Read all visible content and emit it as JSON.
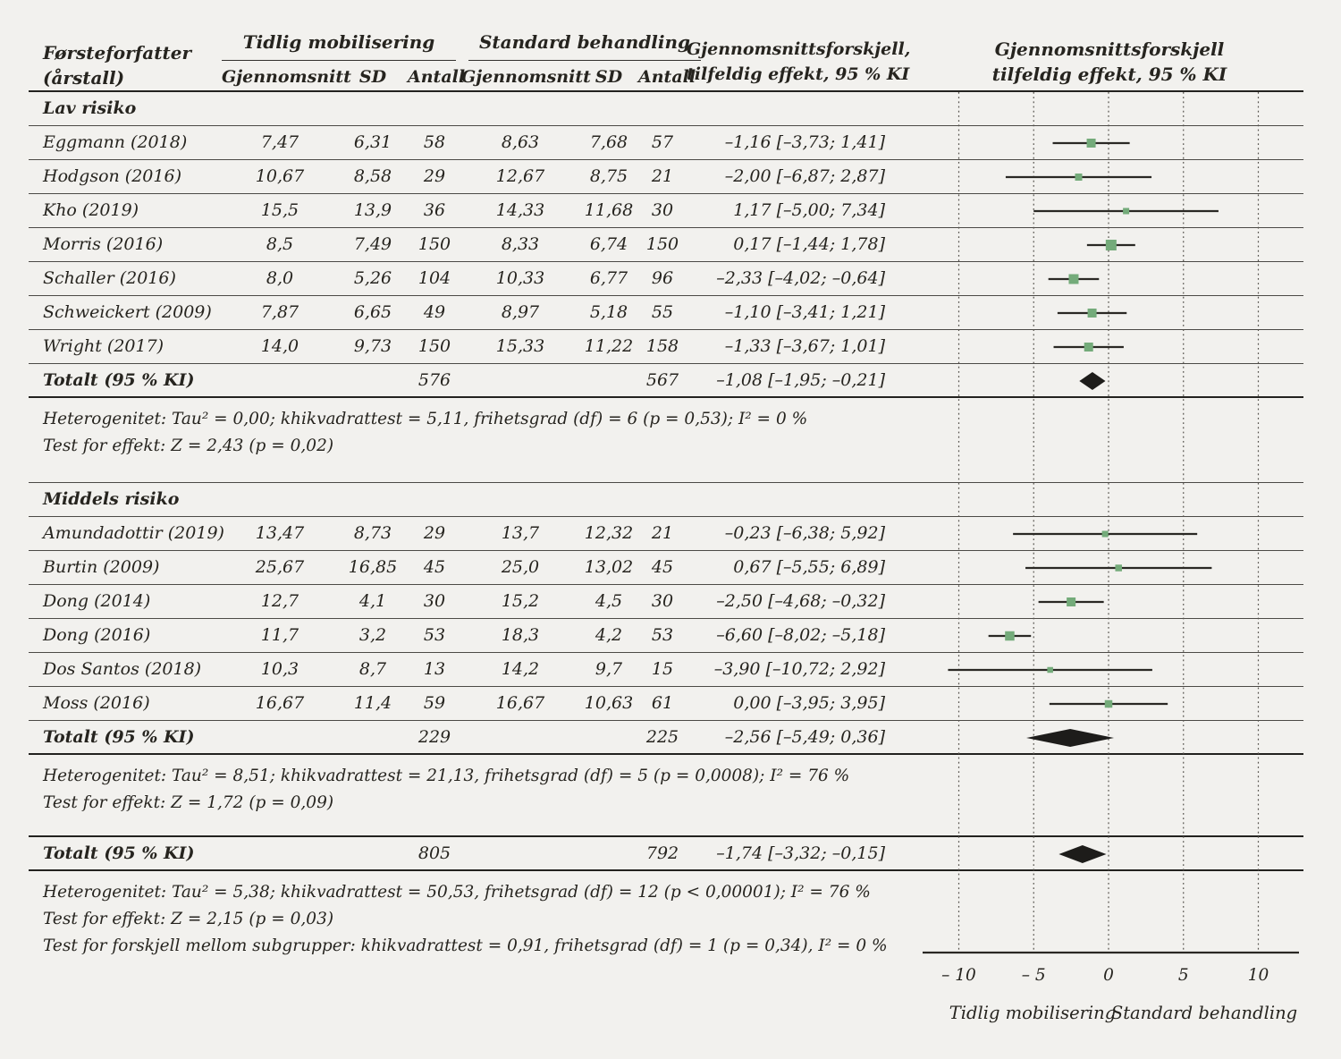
{
  "colors": {
    "background": "#f2f1ee",
    "marker_green": "#74ab7a",
    "diamond": "#1d1c1a",
    "ink": "#26241f",
    "line_thin": "#4c4a46",
    "line_thick": "#23221f",
    "grid_dotted": "#55524c"
  },
  "header": {
    "col_author_line1": "Førsteforfatter",
    "col_author_line2": "(årstall)",
    "group1": "Tidlig mobilisering",
    "group2": "Standard behandling",
    "sub_mean": "Gjennomsnitt",
    "sub_sd": "SD",
    "sub_n": "Antall",
    "diff_col_line1": "Gjennomsnittsforskjell,",
    "diff_col_line2": "tilfeldig effekt, 95 % KI",
    "plot_title_line1": "Gjennomsnittsforskjell",
    "plot_title_line2": "tilfeldig effekt, 95 % KI"
  },
  "chart_data": {
    "type": "forest",
    "x_axis": {
      "tick_values": [
        -10,
        -5,
        0,
        5,
        10
      ],
      "ticks": [
        "– 10",
        "– 5",
        "0",
        "5",
        "10"
      ],
      "left_label": "Tidlig mobilisering",
      "right_label": "Standard behandling",
      "grid": "dotted-vertical"
    },
    "groups": [
      {
        "label": "Lav risiko",
        "studies": [
          {
            "author": "Eggmann (2018)",
            "mean1": "7,47",
            "sd1": "6,31",
            "n1": "58",
            "mean2": "8,63",
            "sd2": "7,68",
            "n2": "57",
            "ci_text": "–1,16 [–3,73; 1,41]",
            "est": -1.16,
            "lo": -3.73,
            "hi": 1.41,
            "marker": 10
          },
          {
            "author": "Hodgson (2016)",
            "mean1": "10,67",
            "sd1": "8,58",
            "n1": "29",
            "mean2": "12,67",
            "sd2": "8,75",
            "n2": "21",
            "ci_text": "–2,00 [–6,87; 2,87]",
            "est": -2.0,
            "lo": -6.87,
            "hi": 2.87,
            "marker": 8
          },
          {
            "author": "Kho (2019)",
            "mean1": "15,5",
            "sd1": "13,9",
            "n1": "36",
            "mean2": "14,33",
            "sd2": "11,68",
            "n2": "30",
            "ci_text": "1,17 [–5,00; 7,34]",
            "est": 1.17,
            "lo": -5.0,
            "hi": 7.34,
            "marker": 7
          },
          {
            "author": "Morris (2016)",
            "mean1": "8,5",
            "sd1": "7,49",
            "n1": "150",
            "mean2": "8,33",
            "sd2": "6,74",
            "n2": "150",
            "ci_text": "0,17 [–1,44; 1,78]",
            "est": 0.17,
            "lo": -1.44,
            "hi": 1.78,
            "marker": 12
          },
          {
            "author": "Schaller (2016)",
            "mean1": "8,0",
            "sd1": "5,26",
            "n1": "104",
            "mean2": "10,33",
            "sd2": "6,77",
            "n2": "96",
            "ci_text": "–2,33 [–4,02; –0,64]",
            "est": -2.33,
            "lo": -4.02,
            "hi": -0.64,
            "marker": 11
          },
          {
            "author": "Schweickert (2009)",
            "mean1": "7,87",
            "sd1": "6,65",
            "n1": "49",
            "mean2": "8,97",
            "sd2": "5,18",
            "n2": "55",
            "ci_text": "–1,10 [–3,41; 1,21]",
            "est": -1.1,
            "lo": -3.41,
            "hi": 1.21,
            "marker": 10
          },
          {
            "author": "Wright (2017)",
            "mean1": "14,0",
            "sd1": "9,73",
            "n1": "150",
            "mean2": "15,33",
            "sd2": "11,22",
            "n2": "158",
            "ci_text": "–1,33 [–3,67; 1,01]",
            "est": -1.33,
            "lo": -3.67,
            "hi": 1.01,
            "marker": 10
          }
        ],
        "total": {
          "label": "Totalt (95 % KI)",
          "n1": "576",
          "n2": "567",
          "ci_text": "–1,08 [–1,95; –0,21]",
          "est": -1.08,
          "lo": -1.95,
          "hi": -0.21
        },
        "notes": [
          "Heterogenitet: Tau² = 0,00; khikvadrattest = 5,11, frihetsgrad (df) = 6 (p = 0,53); I² = 0 %",
          "Test for effekt: Z = 2,43 (p = 0,02)"
        ]
      },
      {
        "label": "Middels risiko",
        "studies": [
          {
            "author": "Amundadottir (2019)",
            "mean1": "13,47",
            "sd1": "8,73",
            "n1": "29",
            "mean2": "13,7",
            "sd2": "12,32",
            "n2": "21",
            "ci_text": "–0,23 [–6,38; 5,92]",
            "est": -0.23,
            "lo": -6.38,
            "hi": 5.92,
            "marker": 7
          },
          {
            "author": "Burtin (2009)",
            "mean1": "25,67",
            "sd1": "16,85",
            "n1": "45",
            "mean2": "25,0",
            "sd2": "13,02",
            "n2": "45",
            "ci_text": "0,67 [–5,55; 6,89]",
            "est": 0.67,
            "lo": -5.55,
            "hi": 6.89,
            "marker": 7.5
          },
          {
            "author": "Dong (2014)",
            "mean1": "12,7",
            "sd1": "4,1",
            "n1": "30",
            "mean2": "15,2",
            "sd2": "4,5",
            "n2": "30",
            "ci_text": "–2,50 [–4,68; –0,32]",
            "est": -2.5,
            "lo": -4.68,
            "hi": -0.32,
            "marker": 10
          },
          {
            "author": "Dong (2016)",
            "mean1": "11,7",
            "sd1": "3,2",
            "n1": "53",
            "mean2": "18,3",
            "sd2": "4,2",
            "n2": "53",
            "ci_text": "–6,60 [–8,02; –5,18]",
            "est": -6.6,
            "lo": -8.02,
            "hi": -5.18,
            "marker": 10.5
          },
          {
            "author": "Dos Santos (2018)",
            "mean1": "10,3",
            "sd1": "8,7",
            "n1": "13",
            "mean2": "14,2",
            "sd2": "9,7",
            "n2": "15",
            "ci_text": "–3,90 [–10,72; 2,92]",
            "est": -3.9,
            "lo": -10.72,
            "hi": 2.92,
            "marker": 6.5
          },
          {
            "author": "Moss (2016)",
            "mean1": "16,67",
            "sd1": "11,4",
            "n1": "59",
            "mean2": "16,67",
            "sd2": "10,63",
            "n2": "61",
            "ci_text": "0,00 [–3,95; 3,95]",
            "est": 0.0,
            "lo": -3.95,
            "hi": 3.95,
            "marker": 8.5
          }
        ],
        "total": {
          "label": "Totalt (95 % KI)",
          "n1": "229",
          "n2": "225",
          "ci_text": "–2,56 [–5,49; 0,36]",
          "est": -2.56,
          "lo": -5.49,
          "hi": 0.36
        },
        "notes": [
          "Heterogenitet: Tau² = 8,51; khikvadrattest = 21,13, frihetsgrad (df) = 5 (p = 0,0008); I² = 76 %",
          "Test for effekt: Z = 1,72 (p = 0,09)"
        ]
      }
    ],
    "overall": {
      "label": "Totalt (95 % KI)",
      "n1": "805",
      "n2": "792",
      "ci_text": "–1,74 [–3,32; –0,15]",
      "est": -1.74,
      "lo": -3.32,
      "hi": -0.15,
      "notes": [
        "Heterogenitet: Tau² = 5,38; khikvadrattest = 50,53, frihetsgrad (df) = 12 (p < 0,00001); I² = 76 %",
        "Test for effekt: Z = 2,15 (p = 0,03)",
        "Test for forskjell mellom subgrupper: khikvadrattest = 0,91, frihetsgrad (df) = 1 (p = 0,34), I² = 0 %"
      ]
    }
  }
}
